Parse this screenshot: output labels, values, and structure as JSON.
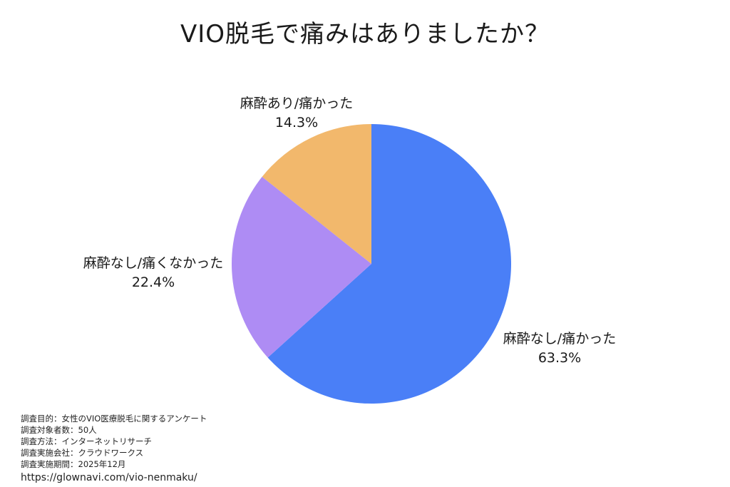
{
  "chart_data": {
    "type": "pie",
    "title": "VIO脱毛で痛みはありましたか？",
    "start_angle_deg": 0,
    "direction": "clockwise",
    "slices": [
      {
        "label": "麻酔なし/痛かった",
        "value": 63.3,
        "display": "63.3%",
        "color": "#4a7ff7"
      },
      {
        "label": "麻酔なし/痛くなかった",
        "value": 22.4,
        "display": "22.4%",
        "color": "#ae8cf4"
      },
      {
        "label": "麻酔あり/痛かった",
        "value": 14.3,
        "display": "14.3%",
        "color": "#f2b86c"
      }
    ]
  },
  "footer": {
    "lines": [
      "調査目的：女性のVIO医療脱毛に関するアンケート",
      "調査対象者数：50人",
      "調査方法：インターネットリサーチ",
      "調査実施会社：クラウドワークス",
      "調査実施期間：2025年12月"
    ],
    "url": "https://glownavi.com/vio-nenmaku/"
  }
}
